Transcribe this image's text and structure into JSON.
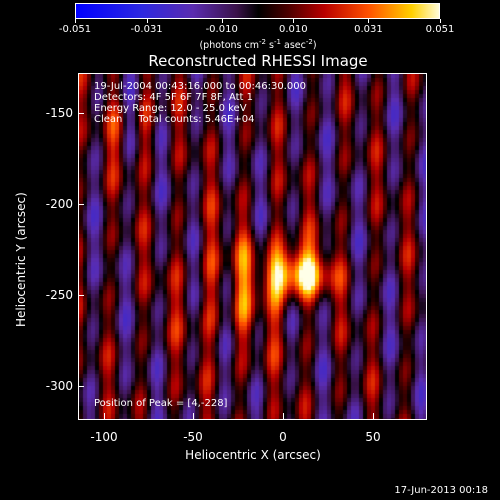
{
  "colorbar": {
    "tick_labels": [
      "-0.051",
      "-0.031",
      "-0.010",
      "0.010",
      "0.031",
      "0.051"
    ],
    "tick_values": [
      -0.051,
      -0.031,
      -0.01,
      0.01,
      0.031,
      0.051
    ],
    "units_prefix": "(photons cm",
    "units_exp1": "-2",
    "units_mid1": " s",
    "units_exp2": "-1",
    "units_mid2": " asec",
    "units_exp3": "-2",
    "units_suffix": ")"
  },
  "plot": {
    "title": "Reconstructed RHESSI Image",
    "info_lines": [
      "19-Jul-2004 00:43:16.000 to 00:46:30.000",
      "Detectors: 4F 5F 6F 7F 8F, Att 1",
      "Energy Range: 12.0 - 25.0 keV",
      "Clean     Total counts: 5.46E+04"
    ],
    "peak_text": "Position of Peak = [4,-228]"
  },
  "axes": {
    "xlabel": "Heliocentric X (arcsec)",
    "ylabel": "Heliocentric Y (arcsec)",
    "xticks": [
      "-100",
      "-50",
      "0",
      "50"
    ],
    "yticks": [
      "-150",
      "-200",
      "-250",
      "-300"
    ]
  },
  "footer": {
    "timestamp": "17-Jun-2013 00:18"
  }
}
